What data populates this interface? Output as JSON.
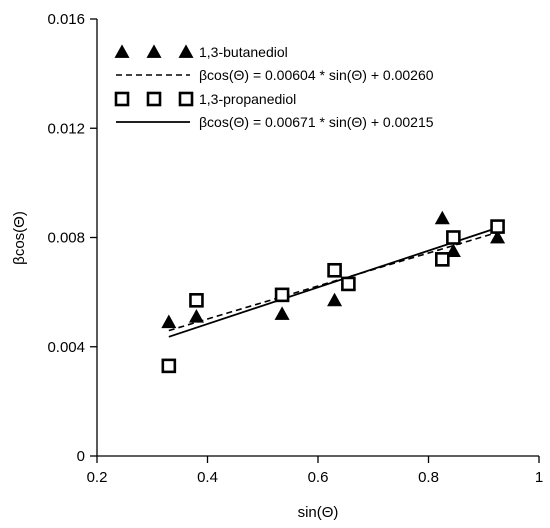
{
  "chart_data": {
    "type": "scatter",
    "xlabel": "sin(Θ)",
    "ylabel": "βcos(Θ)",
    "xlim": [
      0.2,
      1.0
    ],
    "ylim": [
      0,
      0.016
    ],
    "x_ticks": [
      "0.2",
      "0.4",
      "0.6",
      "0.8",
      "1"
    ],
    "y_ticks": [
      "0",
      "0.004",
      "0.008",
      "0.012",
      "0.016"
    ],
    "grid": false,
    "legend_position": "top-left",
    "series": [
      {
        "name": "1,3-butanediol",
        "marker": "filled-triangle",
        "x": [
          0.33,
          0.38,
          0.535,
          0.63,
          0.655,
          0.825,
          0.845,
          0.925
        ],
        "y": [
          0.0049,
          0.0051,
          0.0052,
          0.0057,
          0.0063,
          0.0087,
          0.0075,
          0.008
        ]
      },
      {
        "name": "1,3-propanediol",
        "marker": "open-square",
        "x": [
          0.33,
          0.38,
          0.535,
          0.63,
          0.655,
          0.825,
          0.845,
          0.925
        ],
        "y": [
          0.0033,
          0.0057,
          0.0059,
          0.0068,
          0.0063,
          0.0072,
          0.008,
          0.0084
        ]
      }
    ],
    "fits": [
      {
        "label": "βcos(Θ) = 0.00604 * sin(Θ) + 0.00260",
        "style": "dashed",
        "slope": 0.00604,
        "intercept": 0.0026,
        "x_range": [
          0.33,
          0.925
        ]
      },
      {
        "label": "βcos(Θ) = 0.00671 * sin(Θ) + 0.00215",
        "style": "solid",
        "slope": 0.00671,
        "intercept": 0.00215,
        "x_range": [
          0.33,
          0.925
        ]
      }
    ]
  }
}
